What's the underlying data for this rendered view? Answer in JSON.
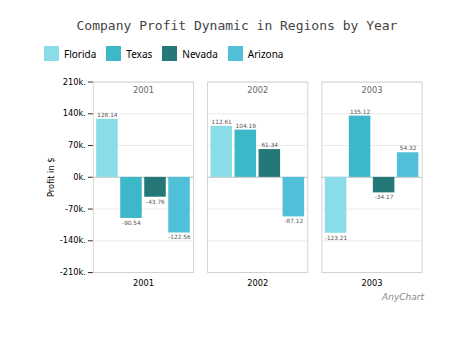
{
  "chart_data": {
    "type": "bar",
    "title": "Company Profit Dynamic in Regions by Year",
    "ylabel": "Profit in $",
    "categories": [
      "2001",
      "2002",
      "2003"
    ],
    "series": [
      {
        "name": "Florida",
        "color": "#8ADCE8",
        "values": [
          128.14,
          112.61,
          -123.21
        ]
      },
      {
        "name": "Texas",
        "color": "#3DB8C8",
        "values": [
          -90.54,
          104.19,
          135.12
        ]
      },
      {
        "name": "Nevada",
        "color": "#257878",
        "values": [
          -43.76,
          61.34,
          -34.17
        ]
      },
      {
        "name": "Arizona",
        "color": "#50C0D8",
        "values": [
          -122.56,
          -87.12,
          54.32
        ]
      }
    ],
    "ylim": [
      -210,
      210
    ],
    "yticks": [
      {
        "value": -210,
        "label": "-210k."
      },
      {
        "value": -140,
        "label": "-140k."
      },
      {
        "value": -70,
        "label": "-70k."
      },
      {
        "value": 0,
        "label": "0k."
      },
      {
        "value": 70,
        "label": "70k."
      },
      {
        "value": 140,
        "label": "140k."
      },
      {
        "value": 210,
        "label": "210k."
      }
    ],
    "grid": true,
    "legend": "top",
    "data_labels": true,
    "annotations": [
      "AnyChart"
    ]
  }
}
